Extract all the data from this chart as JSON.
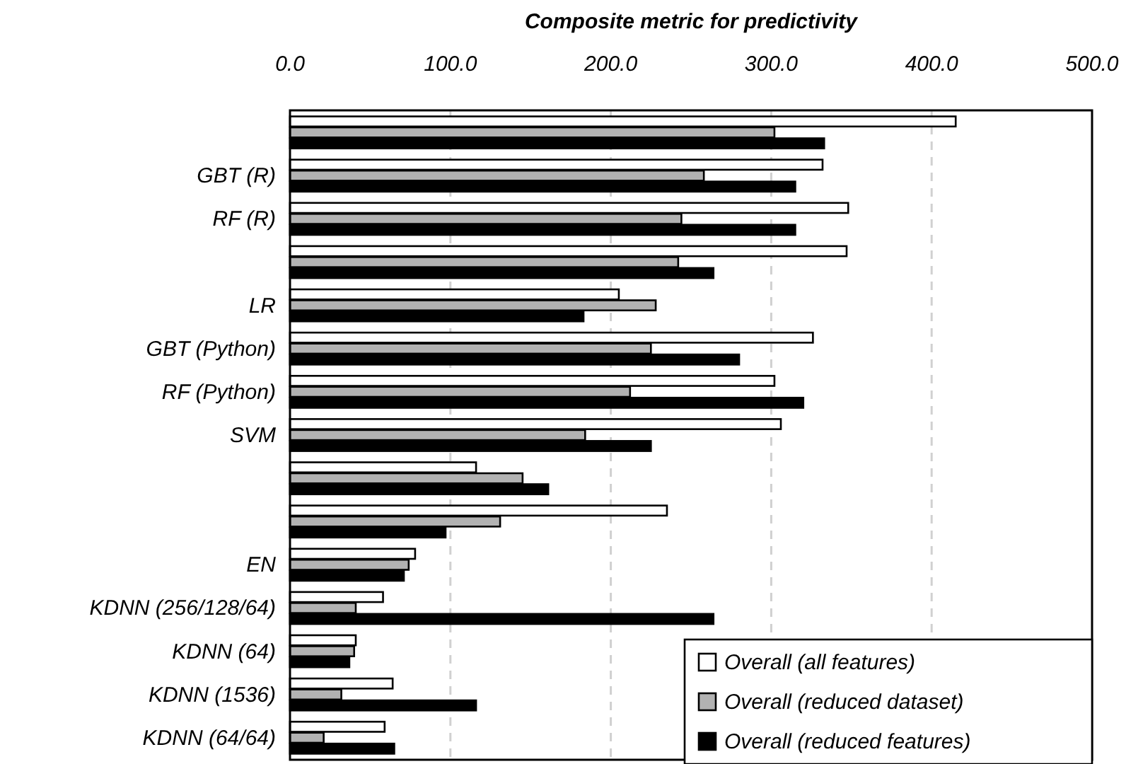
{
  "chart_data": {
    "type": "bar",
    "orientation": "horizontal",
    "xlabel": "Composite metric for predictivity",
    "categories": [
      null,
      "GBT (R)",
      "RF (R)",
      null,
      "LR",
      "GBT (Python)",
      "RF (Python)",
      "SVM",
      null,
      null,
      "EN",
      "KDNN (256/128/64)",
      "KDNN (64)",
      "KDNN (1536)",
      "KDNN (64/64)"
    ],
    "series": [
      {
        "name": "Overall (all features)",
        "color": "#ffffff",
        "values": [
          415,
          332,
          348,
          347,
          205,
          326,
          302,
          306,
          116,
          235,
          78,
          58,
          41,
          64,
          59
        ]
      },
      {
        "name": "Overall (reduced dataset)",
        "color": "#b2b2b2",
        "values": [
          302,
          258,
          244,
          242,
          228,
          225,
          212,
          184,
          145,
          131,
          74,
          41,
          40,
          32,
          21
        ]
      },
      {
        "name": "Overall (reduced features)",
        "color": "#000000",
        "values": [
          333,
          315,
          315,
          264,
          183,
          280,
          320,
          225,
          161,
          97,
          71,
          264,
          37,
          116,
          65
        ]
      }
    ],
    "xlim": [
      0,
      500
    ],
    "xticks": [
      {
        "value": 0,
        "label": "0.0"
      },
      {
        "value": 100,
        "label": "100.0"
      },
      {
        "value": 200,
        "label": "200.0"
      },
      {
        "value": 300,
        "label": "300.0"
      },
      {
        "value": 400,
        "label": "400.0"
      },
      {
        "value": 500,
        "label": "500.0"
      }
    ],
    "grid": "x",
    "legend": "bottom right"
  }
}
